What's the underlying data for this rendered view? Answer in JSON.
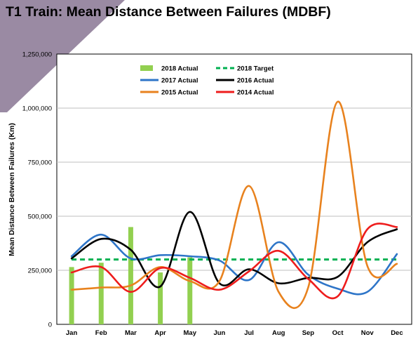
{
  "header": {
    "title": "T1 Train: Mean Distance Between Failures (MDBF)"
  },
  "colors": {
    "corner_band": "#9a8aa3"
  },
  "chart_data": {
    "type": "line",
    "title": "",
    "xlabel": "",
    "ylabel": "Mean Distance Between Failures (Km)",
    "ylim": [
      0,
      1250000
    ],
    "yticks": [
      0,
      250000,
      500000,
      750000,
      1000000,
      1250000
    ],
    "ytick_labels": [
      "0",
      "250,000",
      "500,000",
      "750,000",
      "1,000,000",
      "1,250,000"
    ],
    "categories": [
      "Jan",
      "Feb",
      "Mar",
      "Apr",
      "May",
      "Jun",
      "Jul",
      "Aug",
      "Sep",
      "Oct",
      "Nov",
      "Dec"
    ],
    "grid": "horizontal",
    "legend_position": "top-center",
    "series": [
      {
        "name": "2018 Actual",
        "kind": "bar",
        "color": "#92d050",
        "values": [
          265000,
          285000,
          450000,
          240000,
          310000,
          null,
          null,
          null,
          null,
          null,
          null,
          null
        ]
      },
      {
        "name": "2018 Target",
        "kind": "dashed",
        "color": "#00b050",
        "values": [
          300000,
          300000,
          300000,
          300000,
          300000,
          300000,
          300000,
          300000,
          300000,
          300000,
          300000,
          300000
        ]
      },
      {
        "name": "2017 Actual",
        "kind": "line",
        "color": "#2e75c8",
        "values": [
          315000,
          415000,
          305000,
          320000,
          315000,
          295000,
          205000,
          380000,
          230000,
          165000,
          150000,
          325000
        ]
      },
      {
        "name": "2016 Actual",
        "kind": "line",
        "color": "#000000",
        "values": [
          305000,
          395000,
          345000,
          175000,
          520000,
          190000,
          255000,
          190000,
          215000,
          220000,
          380000,
          440000
        ]
      },
      {
        "name": "2015 Actual",
        "kind": "line",
        "color": "#e8821e",
        "values": [
          160000,
          170000,
          180000,
          265000,
          200000,
          200000,
          640000,
          150000,
          170000,
          1030000,
          270000,
          280000
        ]
      },
      {
        "name": "2014 Actual",
        "kind": "line",
        "color": "#ee1c1c",
        "values": [
          240000,
          265000,
          150000,
          260000,
          215000,
          160000,
          245000,
          340000,
          210000,
          130000,
          440000,
          450000
        ]
      }
    ]
  }
}
